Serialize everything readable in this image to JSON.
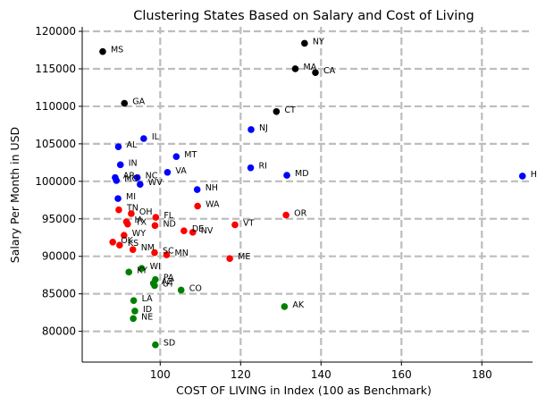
{
  "chart_data": {
    "type": "scatter",
    "title": "Clustering States Based on Salary and Cost of Living",
    "xlabel": "COST OF LIVING in Index (100 as Benchmark)",
    "ylabel": "Salary Per Month in USD",
    "xlim": [
      80.6,
      192.6
    ],
    "ylim": [
      75900,
      120600
    ],
    "xticks": [
      100,
      120,
      140,
      160,
      180
    ],
    "yticks": [
      80000,
      85000,
      90000,
      95000,
      100000,
      105000,
      110000,
      115000,
      120000
    ],
    "grid": true,
    "grid_style": "dashed",
    "legend": "none",
    "cluster_colors": {
      "black": "#000000",
      "blue": "#0000ff",
      "red": "#ff0000",
      "green": "#008000"
    },
    "points": [
      {
        "label": "MS",
        "x": 85.7,
        "y": 117300,
        "cluster": "black"
      },
      {
        "label": "GA",
        "x": 91.1,
        "y": 110400,
        "cluster": "black"
      },
      {
        "label": "NY",
        "x": 135.9,
        "y": 118400,
        "cluster": "black"
      },
      {
        "label": "MA",
        "x": 133.6,
        "y": 115000,
        "cluster": "black"
      },
      {
        "label": "CA",
        "x": 138.6,
        "y": 114500,
        "cluster": "black"
      },
      {
        "label": "CT",
        "x": 128.9,
        "y": 109300,
        "cluster": "black"
      },
      {
        "label": "IL",
        "x": 95.9,
        "y": 105700,
        "cluster": "blue"
      },
      {
        "label": "AL",
        "x": 89.6,
        "y": 104600,
        "cluster": "blue"
      },
      {
        "label": "NJ",
        "x": 122.6,
        "y": 106900,
        "cluster": "blue"
      },
      {
        "label": "MT",
        "x": 104.0,
        "y": 103300,
        "cluster": "blue"
      },
      {
        "label": "IN",
        "x": 90.1,
        "y": 102200,
        "cluster": "blue"
      },
      {
        "label": "VA",
        "x": 101.8,
        "y": 101200,
        "cluster": "blue"
      },
      {
        "label": "RI",
        "x": 122.5,
        "y": 101800,
        "cluster": "blue"
      },
      {
        "label": "MD",
        "x": 131.5,
        "y": 100800,
        "cluster": "blue"
      },
      {
        "label": "AR",
        "x": 88.8,
        "y": 100500,
        "cluster": "blue"
      },
      {
        "label": "NC",
        "x": 94.3,
        "y": 100500,
        "cluster": "blue"
      },
      {
        "label": "MO",
        "x": 89.1,
        "y": 100100,
        "cluster": "blue"
      },
      {
        "label": "WV",
        "x": 95.0,
        "y": 99600,
        "cluster": "blue"
      },
      {
        "label": "NH",
        "x": 109.2,
        "y": 98900,
        "cluster": "blue"
      },
      {
        "label": "MI",
        "x": 89.5,
        "y": 97700,
        "cluster": "blue"
      },
      {
        "label": "HI",
        "x": 190.1,
        "y": 100700,
        "cluster": "blue"
      },
      {
        "label": "TN",
        "x": 89.7,
        "y": 96200,
        "cluster": "red"
      },
      {
        "label": "WA",
        "x": 109.3,
        "y": 96700,
        "cluster": "red"
      },
      {
        "label": "OH",
        "x": 92.8,
        "y": 95700,
        "cluster": "red"
      },
      {
        "label": "FL",
        "x": 98.9,
        "y": 95200,
        "cluster": "red"
      },
      {
        "label": "OR",
        "x": 131.3,
        "y": 95500,
        "cluster": "red"
      },
      {
        "label": "IA",
        "x": 91.6,
        "y": 94600,
        "cluster": "red"
      },
      {
        "label": "TX",
        "x": 91.9,
        "y": 94300,
        "cluster": "red"
      },
      {
        "label": "ND",
        "x": 98.7,
        "y": 94100,
        "cluster": "red"
      },
      {
        "label": "VT",
        "x": 118.6,
        "y": 94200,
        "cluster": "red"
      },
      {
        "label": "DE",
        "x": 105.9,
        "y": 93400,
        "cluster": "red"
      },
      {
        "label": "NV",
        "x": 108.1,
        "y": 93200,
        "cluster": "red"
      },
      {
        "label": "WY",
        "x": 91.0,
        "y": 92800,
        "cluster": "red"
      },
      {
        "label": "OK",
        "x": 88.2,
        "y": 91900,
        "cluster": "red"
      },
      {
        "label": "KS",
        "x": 89.9,
        "y": 91500,
        "cluster": "red"
      },
      {
        "label": "NM",
        "x": 93.2,
        "y": 90900,
        "cluster": "red"
      },
      {
        "label": "SC",
        "x": 98.6,
        "y": 90500,
        "cluster": "red"
      },
      {
        "label": "MN",
        "x": 101.6,
        "y": 90200,
        "cluster": "red"
      },
      {
        "label": "ME",
        "x": 117.3,
        "y": 89700,
        "cluster": "red"
      },
      {
        "label": "WI",
        "x": 95.4,
        "y": 88400,
        "cluster": "green"
      },
      {
        "label": "KY",
        "x": 92.2,
        "y": 87900,
        "cluster": "green"
      },
      {
        "label": "PA",
        "x": 98.8,
        "y": 86900,
        "cluster": "green"
      },
      {
        "label": "AZ",
        "x": 98.3,
        "y": 86400,
        "cluster": "green"
      },
      {
        "label": "UT",
        "x": 98.6,
        "y": 86100,
        "cluster": "green"
      },
      {
        "label": "CO",
        "x": 105.2,
        "y": 85500,
        "cluster": "green"
      },
      {
        "label": "LA",
        "x": 93.4,
        "y": 84100,
        "cluster": "green"
      },
      {
        "label": "AK",
        "x": 130.9,
        "y": 83300,
        "cluster": "green"
      },
      {
        "label": "ID",
        "x": 93.7,
        "y": 82700,
        "cluster": "green"
      },
      {
        "label": "NE",
        "x": 93.3,
        "y": 81700,
        "cluster": "green"
      },
      {
        "label": "SD",
        "x": 98.8,
        "y": 78200,
        "cluster": "green"
      }
    ]
  }
}
